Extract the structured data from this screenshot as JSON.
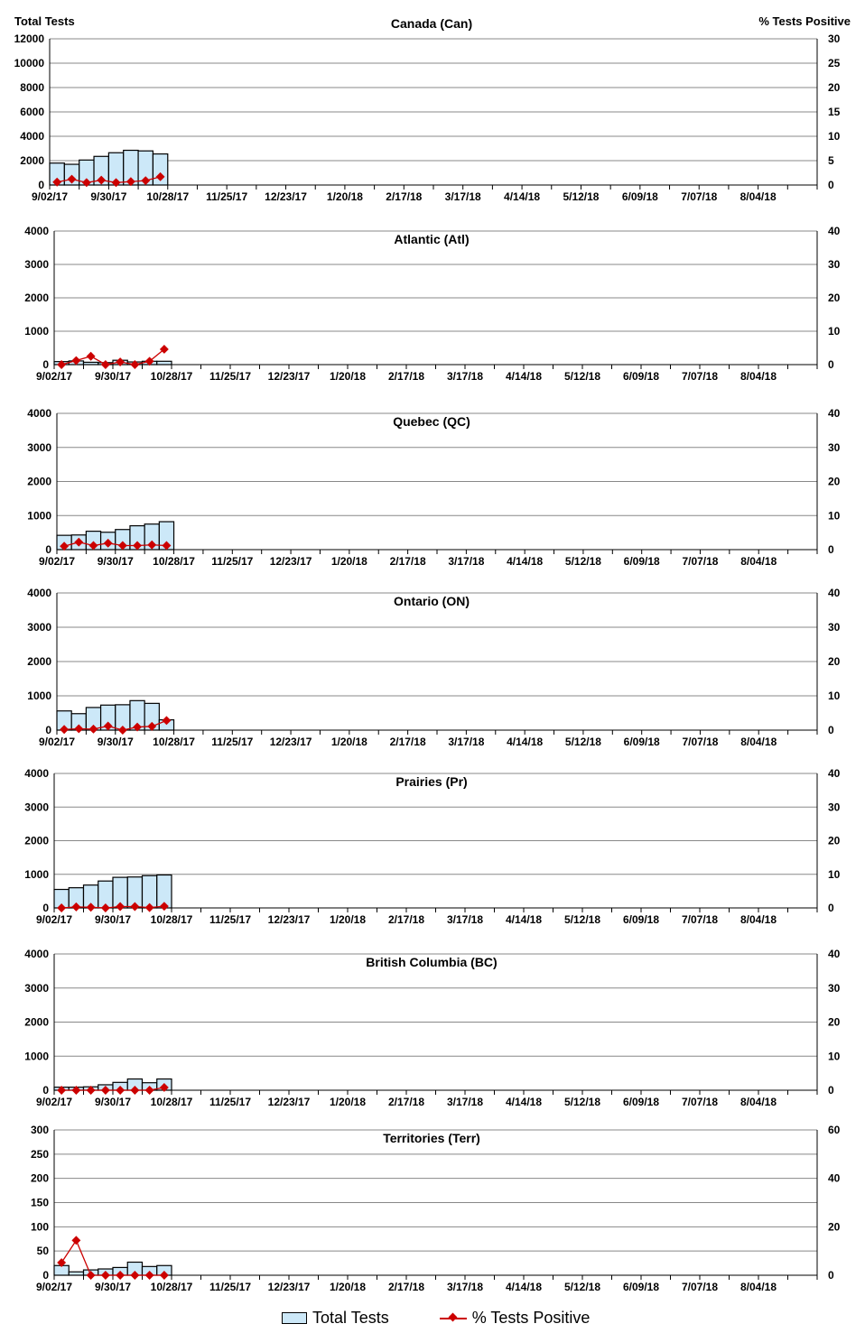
{
  "axis_titles": {
    "left": "Total Tests",
    "right": "% Tests Positive"
  },
  "legend": {
    "bars": "Total Tests",
    "line": "% Tests Positive"
  },
  "colors": {
    "bar": "#cce8f8",
    "line": "#cc0000"
  },
  "chart_data": [
    {
      "type": "bar+line",
      "title": "Canada (Can)",
      "ylim": [
        0,
        12000
      ],
      "yticks": [
        0,
        2000,
        4000,
        6000,
        8000,
        10000,
        12000
      ],
      "y2lim": [
        0,
        30
      ],
      "y2ticks": [
        0,
        5,
        10,
        15,
        20,
        25,
        30
      ],
      "x_ticklabels": [
        "9/02/17",
        "9/30/17",
        "10/28/17",
        "11/25/17",
        "12/23/17",
        "1/20/18",
        "2/17/18",
        "3/17/18",
        "4/14/18",
        "5/12/18",
        "6/09/18",
        "7/07/18",
        "8/04/18"
      ],
      "tests": [
        1800,
        1700,
        2050,
        2350,
        2650,
        2850,
        2800,
        2550
      ],
      "pct_positive": [
        0.6,
        1.2,
        0.5,
        1.0,
        0.5,
        0.7,
        0.9,
        1.7
      ]
    },
    {
      "type": "bar+line",
      "title": "Atlantic (Atl)",
      "ylim": [
        0,
        4000
      ],
      "yticks": [
        0,
        1000,
        2000,
        3000,
        4000
      ],
      "y2lim": [
        0,
        40
      ],
      "y2ticks": [
        0,
        10,
        20,
        30,
        40
      ],
      "x_ticklabels": [
        "9/02/17",
        "9/30/17",
        "10/28/17",
        "11/25/17",
        "12/23/17",
        "1/20/18",
        "2/17/18",
        "3/17/18",
        "4/14/18",
        "5/12/18",
        "6/09/18",
        "7/07/18",
        "8/04/18"
      ],
      "tests": [
        90,
        110,
        70,
        60,
        130,
        80,
        100,
        100
      ],
      "pct_positive": [
        0,
        1.2,
        2.5,
        0,
        0.8,
        0,
        1.0,
        4.6
      ]
    },
    {
      "type": "bar+line",
      "title": "Quebec (QC)",
      "ylim": [
        0,
        4000
      ],
      "yticks": [
        0,
        1000,
        2000,
        3000,
        4000
      ],
      "y2lim": [
        0,
        40
      ],
      "y2ticks": [
        0,
        10,
        20,
        30,
        40
      ],
      "x_ticklabels": [
        "9/02/17",
        "9/30/17",
        "10/28/17",
        "11/25/17",
        "12/23/17",
        "1/20/18",
        "2/17/18",
        "3/17/18",
        "4/14/18",
        "5/12/18",
        "6/09/18",
        "7/07/18",
        "8/04/18"
      ],
      "tests": [
        420,
        430,
        540,
        510,
        590,
        700,
        750,
        820
      ],
      "pct_positive": [
        1.0,
        2.2,
        1.2,
        1.9,
        1.2,
        1.2,
        1.4,
        1.2
      ]
    },
    {
      "type": "bar+line",
      "title": "Ontario (ON)",
      "ylim": [
        0,
        4000
      ],
      "yticks": [
        0,
        1000,
        2000,
        3000,
        4000
      ],
      "y2lim": [
        0,
        40
      ],
      "y2ticks": [
        0,
        10,
        20,
        30,
        40
      ],
      "x_ticklabels": [
        "9/02/17",
        "9/30/17",
        "10/28/17",
        "11/25/17",
        "12/23/17",
        "1/20/18",
        "2/17/18",
        "3/17/18",
        "4/14/18",
        "5/12/18",
        "6/09/18",
        "7/07/18",
        "8/04/18"
      ],
      "tests": [
        560,
        480,
        660,
        730,
        740,
        860,
        780,
        300
      ],
      "pct_positive": [
        0.2,
        0.4,
        0.3,
        1.2,
        0,
        0.9,
        1.1,
        2.8
      ]
    },
    {
      "type": "bar+line",
      "title": "Prairies (Pr)",
      "ylim": [
        0,
        4000
      ],
      "yticks": [
        0,
        1000,
        2000,
        3000,
        4000
      ],
      "y2lim": [
        0,
        40
      ],
      "y2ticks": [
        0,
        10,
        20,
        30,
        40
      ],
      "x_ticklabels": [
        "9/02/17",
        "9/30/17",
        "10/28/17",
        "11/25/17",
        "12/23/17",
        "1/20/18",
        "2/17/18",
        "3/17/18",
        "4/14/18",
        "5/12/18",
        "6/09/18",
        "7/07/18",
        "8/04/18"
      ],
      "tests": [
        550,
        600,
        680,
        800,
        910,
        920,
        960,
        980
      ],
      "pct_positive": [
        0,
        0.3,
        0.2,
        0,
        0.4,
        0.4,
        0.1,
        0.5
      ]
    },
    {
      "type": "bar+line",
      "title": "British Columbia (BC)",
      "ylim": [
        0,
        4000
      ],
      "yticks": [
        0,
        1000,
        2000,
        3000,
        4000
      ],
      "y2lim": [
        0,
        40
      ],
      "y2ticks": [
        0,
        10,
        20,
        30,
        40
      ],
      "x_ticklabels": [
        "9/02/17",
        "9/30/17",
        "10/28/17",
        "11/25/17",
        "12/23/17",
        "1/20/18",
        "2/17/18",
        "3/17/18",
        "4/14/18",
        "5/12/18",
        "6/09/18",
        "7/07/18",
        "8/04/18"
      ],
      "tests": [
        90,
        90,
        100,
        160,
        230,
        330,
        220,
        330
      ],
      "pct_positive": [
        0,
        0,
        0,
        0,
        0,
        0,
        0,
        0.8
      ]
    },
    {
      "type": "bar+line",
      "title": "Territories (Terr)",
      "ylim": [
        0,
        300
      ],
      "yticks": [
        0,
        50,
        100,
        150,
        200,
        250,
        300
      ],
      "y2lim": [
        0,
        60
      ],
      "y2ticks": [
        0,
        20,
        40,
        60
      ],
      "x_ticklabels": [
        "9/02/17",
        "9/30/17",
        "10/28/17",
        "11/25/17",
        "12/23/17",
        "1/20/18",
        "2/17/18",
        "3/17/18",
        "4/14/18",
        "5/12/18",
        "6/09/18",
        "7/07/18",
        "8/04/18"
      ],
      "tests": [
        20,
        7,
        11,
        13,
        16,
        27,
        18,
        20
      ],
      "pct_positive": [
        5.2,
        14.4,
        0,
        0,
        0,
        0,
        0,
        0
      ]
    }
  ]
}
